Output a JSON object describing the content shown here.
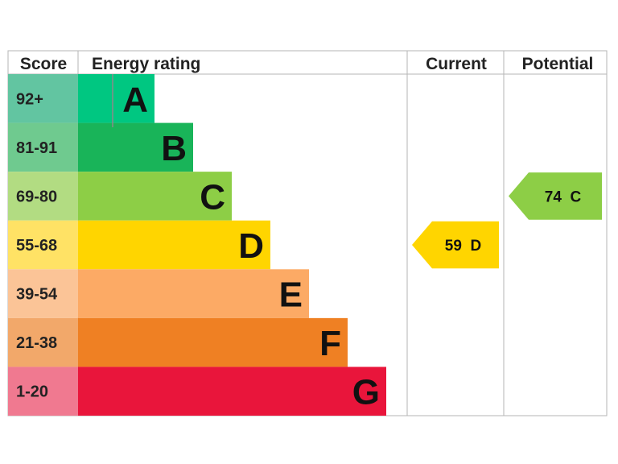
{
  "chart_data": {
    "type": "bar",
    "headers": {
      "score": "Score",
      "rating": "Energy rating",
      "current": "Current",
      "potential": "Potential"
    },
    "bands": [
      {
        "letter": "A",
        "range": "92+",
        "min": 92,
        "max": 100,
        "color": "#00c781",
        "score_color": "#62c5a1"
      },
      {
        "letter": "B",
        "range": "81-91",
        "min": 81,
        "max": 91,
        "color": "#19b459",
        "score_color": "#6fca8f"
      },
      {
        "letter": "C",
        "range": "69-80",
        "min": 69,
        "max": 80,
        "color": "#8dce46",
        "score_color": "#b2dc82"
      },
      {
        "letter": "D",
        "range": "55-68",
        "min": 55,
        "max": 68,
        "color": "#ffd500",
        "score_color": "#ffe265"
      },
      {
        "letter": "E",
        "range": "39-54",
        "min": 39,
        "max": 54,
        "color": "#fcaa65",
        "score_color": "#fbc497"
      },
      {
        "letter": "F",
        "range": "21-38",
        "min": 21,
        "max": 38,
        "color": "#ef8023",
        "score_color": "#f2a86a"
      },
      {
        "letter": "G",
        "range": "1-20",
        "min": 1,
        "max": 20,
        "color": "#e9153b",
        "score_color": "#f07990"
      }
    ],
    "current": {
      "value": 59,
      "band": "D",
      "label": "59  D",
      "color": "#ffd500"
    },
    "potential": {
      "value": 74,
      "band": "C",
      "label": "74  C",
      "color": "#8dce46"
    }
  }
}
